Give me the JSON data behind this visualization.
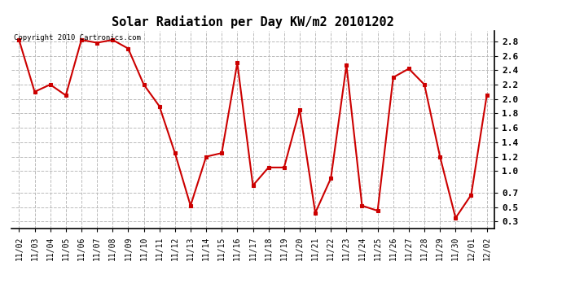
{
  "title": "Solar Radiation per Day KW/m2 20101202",
  "copyright_text": "Copyright 2010 Cartronics.com",
  "dates": [
    "11/02",
    "11/03",
    "11/04",
    "11/05",
    "11/06",
    "11/07",
    "11/08",
    "11/09",
    "11/10",
    "11/11",
    "11/12",
    "11/13",
    "11/14",
    "11/15",
    "11/16",
    "11/17",
    "11/18",
    "11/19",
    "11/20",
    "11/21",
    "11/22",
    "11/23",
    "11/24",
    "11/25",
    "11/26",
    "11/27",
    "11/28",
    "11/29",
    "11/30",
    "12/01",
    "12/02"
  ],
  "values": [
    2.82,
    2.1,
    2.2,
    2.05,
    2.82,
    2.78,
    2.82,
    2.7,
    2.2,
    1.9,
    1.25,
    0.52,
    1.2,
    1.25,
    2.5,
    0.8,
    1.05,
    1.05,
    1.85,
    0.42,
    0.9,
    2.47,
    0.52,
    0.45,
    2.3,
    2.42,
    2.2,
    1.2,
    0.35,
    0.67,
    2.05
  ],
  "line_color": "#cc0000",
  "marker": "s",
  "marker_size": 3,
  "marker_color": "#cc0000",
  "background_color": "#ffffff",
  "plot_bg_color": "#ffffff",
  "grid_color": "#bbbbbb",
  "grid_style": "--",
  "title_fontsize": 11,
  "tick_fontsize": 7,
  "ylim_min": 0.2,
  "ylim_max": 2.95,
  "yticks": [
    0.3,
    0.5,
    0.7,
    1.0,
    1.2,
    1.4,
    1.6,
    1.8,
    2.0,
    2.2,
    2.4,
    2.6,
    2.8
  ],
  "line_width": 1.5,
  "fig_width": 6.9,
  "fig_height": 3.75,
  "dpi": 100
}
